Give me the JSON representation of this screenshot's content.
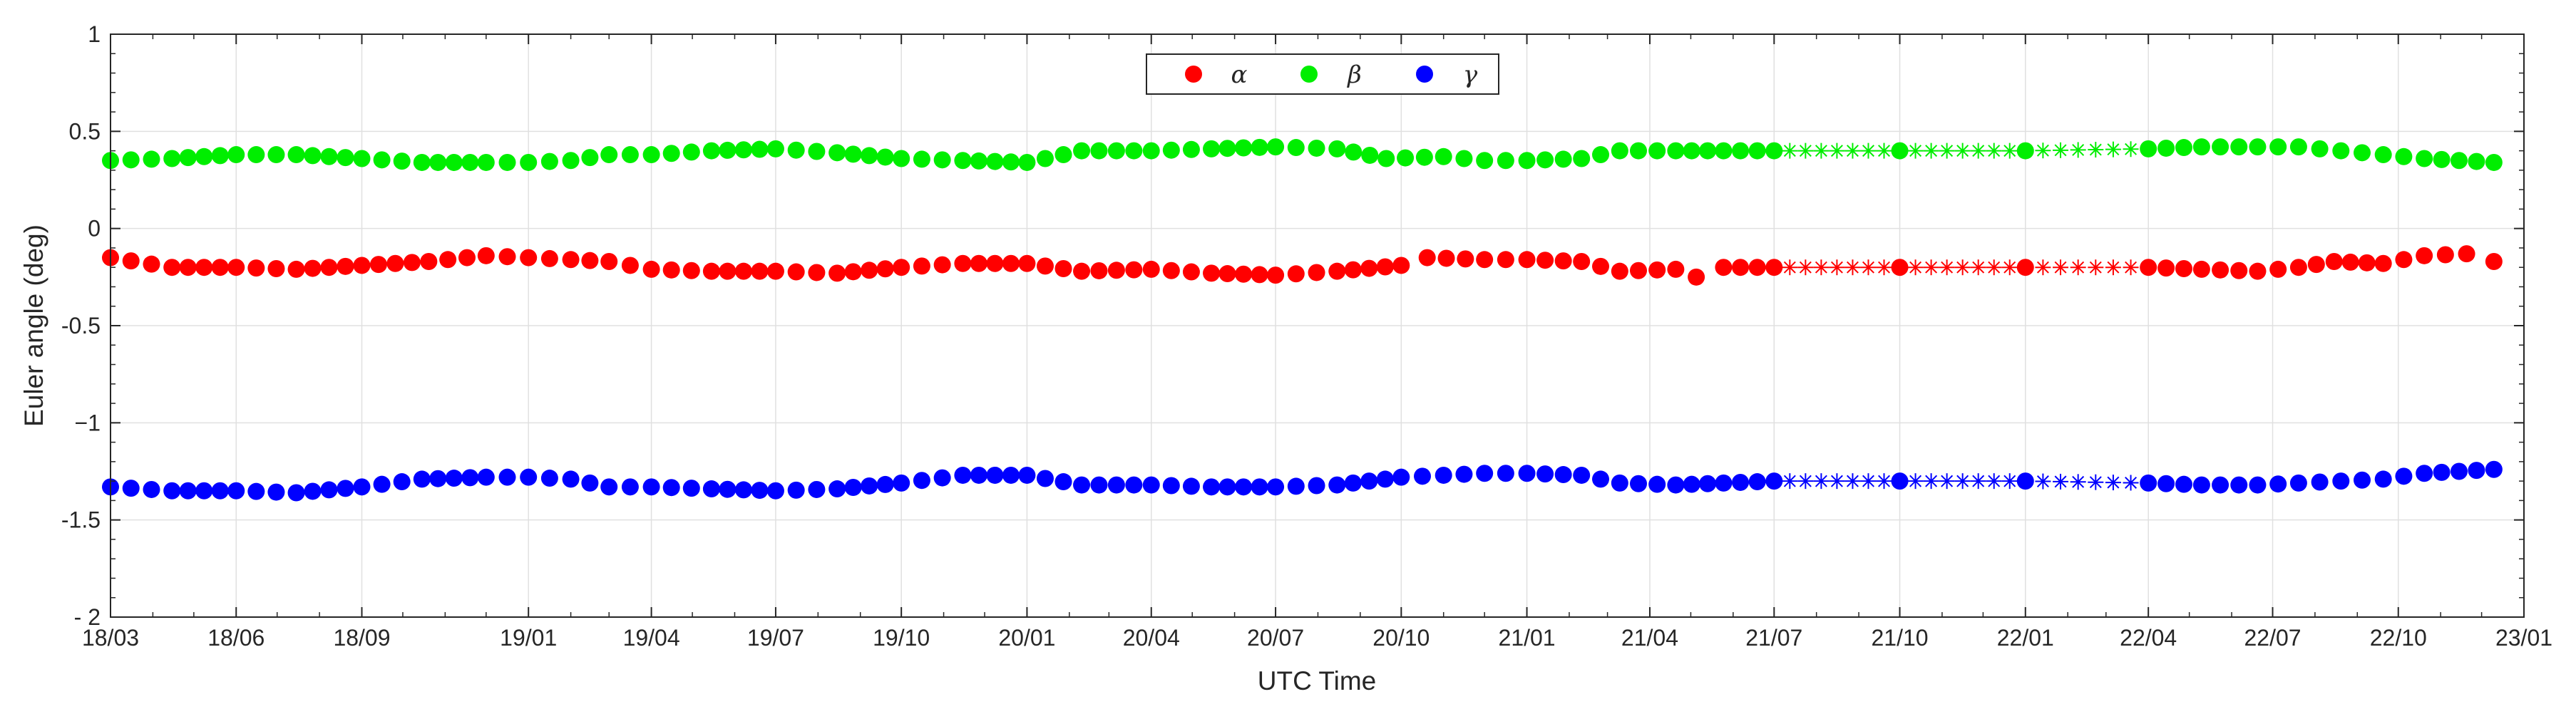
{
  "chart_data": {
    "type": "scatter",
    "title": "",
    "xlabel": "UTC Time",
    "ylabel": "Euler angle (deg)",
    "xlim": [
      "2018-03-01",
      "2023-01-01"
    ],
    "ylim": [
      -2,
      1
    ],
    "yticks": [
      1,
      0.5,
      0,
      -0.5,
      -1,
      -1.5,
      -2
    ],
    "ytick_labels": [
      "1",
      "0.5",
      "0",
      "-0.5",
      "−1",
      "-1.5",
      "- 2"
    ],
    "xtick_dates": [
      "2018-03-01",
      "2018-06-01",
      "2018-09-01",
      "2019-01-01",
      "2019-04-01",
      "2019-07-01",
      "2019-10-01",
      "2020-01-01",
      "2020-04-01",
      "2020-07-01",
      "2020-10-01",
      "2021-01-01",
      "2021-04-01",
      "2021-07-01",
      "2021-10-01",
      "2022-01-01",
      "2022-04-01",
      "2022-07-01",
      "2022-10-01",
      "2023-01-01"
    ],
    "xtick_labels": [
      "18/03",
      "18/06",
      "18/09",
      "19/01",
      "19/04",
      "19/07",
      "19/10",
      "20/01",
      "20/04",
      "20/07",
      "20/10",
      "21/01",
      "21/04",
      "21/07",
      "21/10",
      "22/01",
      "22/04",
      "22/07",
      "22/10",
      "23/01"
    ],
    "grid": true,
    "legend_position": "top-center",
    "marker_note": "filled circles = observed values, asterisks = gap segments",
    "series": [
      {
        "name": "α",
        "color": "#ff0000",
        "x": [
          "2018-03-01",
          "2018-04-15",
          "2018-06-01",
          "2018-07-15",
          "2018-09-01",
          "2018-10-20",
          "2018-12-01",
          "2019-01-01",
          "2019-02-01",
          "2019-03-01",
          "2019-04-01",
          "2019-05-15",
          "2019-07-01",
          "2019-08-15",
          "2019-10-01",
          "2019-11-15",
          "2020-01-01",
          "2020-02-10",
          "2020-04-01",
          "2020-05-15",
          "2020-07-01",
          "2020-08-15",
          "2020-10-01",
          "2020-10-20",
          "2020-12-01",
          "2021-01-01",
          "2021-02-10",
          "2021-03-10",
          "2021-04-20",
          "2021-05-05",
          "2021-05-25",
          "2021-07-01",
          "2021-10-01",
          "2022-01-01",
          "2022-04-01",
          "2022-05-10",
          "2022-06-20",
          "2022-07-20",
          "2022-08-15",
          "2022-09-20",
          "2022-10-20",
          "2022-11-20",
          "2022-12-10"
        ],
        "y": [
          -0.15,
          -0.2,
          -0.2,
          -0.21,
          -0.19,
          -0.17,
          -0.14,
          -0.15,
          -0.16,
          -0.17,
          -0.21,
          -0.22,
          -0.22,
          -0.23,
          -0.2,
          -0.18,
          -0.18,
          -0.22,
          -0.21,
          -0.23,
          -0.24,
          -0.22,
          -0.19,
          -0.15,
          -0.16,
          -0.16,
          -0.17,
          -0.22,
          -0.21,
          -0.25,
          -0.2,
          -0.2,
          -0.2,
          -0.2,
          -0.2,
          -0.21,
          -0.22,
          -0.2,
          -0.17,
          -0.18,
          -0.14,
          -0.13,
          -0.17
        ]
      },
      {
        "name": "β",
        "color": "#00ee00",
        "x": [
          "2018-03-01",
          "2018-04-15",
          "2018-06-01",
          "2018-07-15",
          "2018-09-01",
          "2018-10-15",
          "2018-12-01",
          "2019-01-01",
          "2019-02-01",
          "2019-03-01",
          "2019-04-01",
          "2019-05-15",
          "2019-07-01",
          "2019-08-15",
          "2019-10-01",
          "2019-11-15",
          "2020-01-01",
          "2020-02-10",
          "2020-04-01",
          "2020-05-15",
          "2020-07-01",
          "2020-08-15",
          "2020-09-20",
          "2020-11-01",
          "2020-12-01",
          "2021-01-01",
          "2021-02-10",
          "2021-03-10",
          "2021-04-20",
          "2021-05-25",
          "2021-07-01",
          "2021-10-01",
          "2022-01-01",
          "2022-04-01",
          "2022-05-10",
          "2022-06-20",
          "2022-07-20",
          "2022-08-20",
          "2022-09-20",
          "2022-10-20",
          "2022-12-10"
        ],
        "y": [
          0.35,
          0.36,
          0.38,
          0.38,
          0.36,
          0.34,
          0.34,
          0.34,
          0.35,
          0.38,
          0.38,
          0.4,
          0.41,
          0.39,
          0.36,
          0.35,
          0.34,
          0.4,
          0.4,
          0.41,
          0.42,
          0.41,
          0.36,
          0.37,
          0.35,
          0.35,
          0.36,
          0.4,
          0.4,
          0.4,
          0.4,
          0.4,
          0.4,
          0.41,
          0.42,
          0.42,
          0.42,
          0.4,
          0.38,
          0.36,
          0.34
        ]
      },
      {
        "name": "γ",
        "color": "#0000ff",
        "x": [
          "2018-03-01",
          "2018-04-15",
          "2018-06-01",
          "2018-07-15",
          "2018-09-01",
          "2018-10-15",
          "2018-12-01",
          "2019-01-01",
          "2019-02-01",
          "2019-03-01",
          "2019-04-01",
          "2019-05-15",
          "2019-07-01",
          "2019-08-15",
          "2019-10-01",
          "2019-11-15",
          "2020-01-01",
          "2020-02-10",
          "2020-04-01",
          "2020-05-15",
          "2020-07-01",
          "2020-08-15",
          "2020-10-01",
          "2020-11-01",
          "2020-12-01",
          "2021-01-01",
          "2021-02-10",
          "2021-03-10",
          "2021-04-20",
          "2021-05-25",
          "2021-07-01",
          "2021-10-01",
          "2022-01-01",
          "2022-04-01",
          "2022-05-10",
          "2022-06-20",
          "2022-07-20",
          "2022-08-20",
          "2022-09-20",
          "2022-10-20",
          "2022-12-10"
        ],
        "y": [
          -1.33,
          -1.35,
          -1.35,
          -1.36,
          -1.33,
          -1.29,
          -1.28,
          -1.28,
          -1.29,
          -1.33,
          -1.33,
          -1.34,
          -1.35,
          -1.34,
          -1.31,
          -1.27,
          -1.27,
          -1.32,
          -1.32,
          -1.33,
          -1.33,
          -1.32,
          -1.28,
          -1.27,
          -1.26,
          -1.26,
          -1.27,
          -1.31,
          -1.32,
          -1.31,
          -1.3,
          -1.3,
          -1.3,
          -1.31,
          -1.32,
          -1.32,
          -1.31,
          -1.3,
          -1.29,
          -1.26,
          -1.24
        ]
      }
    ]
  }
}
